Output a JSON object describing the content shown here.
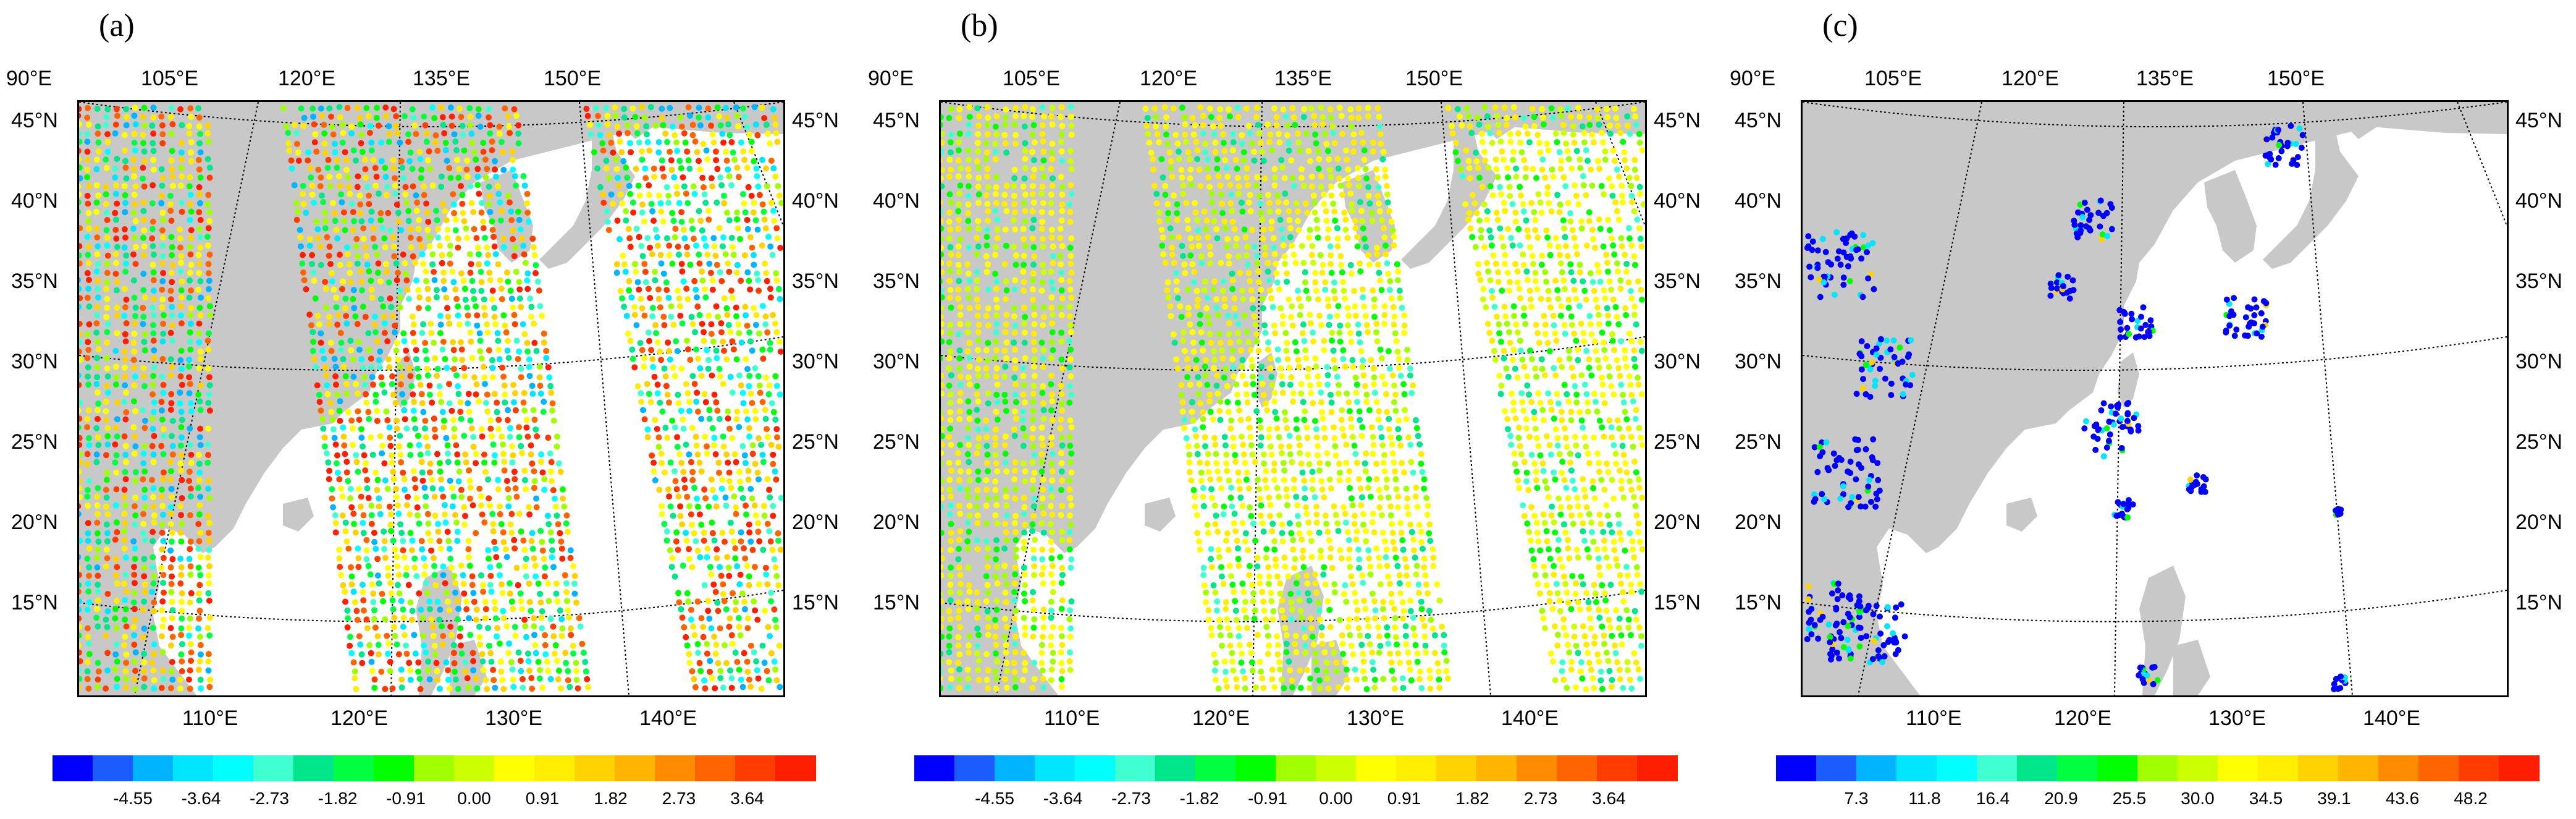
{
  "colors": {
    "land": "#c8c8c8",
    "ocean": "#ffffff",
    "palette": [
      "#0000ff",
      "#1a5cff",
      "#00b4ff",
      "#00e6ff",
      "#00ffff",
      "#40ffd0",
      "#00e68a",
      "#00ff40",
      "#00ff00",
      "#a0ff00",
      "#ccff00",
      "#ffff00",
      "#ffee00",
      "#ffd200",
      "#ffb400",
      "#ff8c00",
      "#ff6400",
      "#ff3c00",
      "#ff1e00"
    ]
  },
  "axes": {
    "top_lon_labels": [
      "90°E",
      "105°E",
      "120°E",
      "135°E",
      "150°E"
    ],
    "bottom_lon_labels": [
      "110°E",
      "120°E",
      "130°E",
      "140°E"
    ],
    "lat_labels": [
      "45°N",
      "40°N",
      "35°N",
      "30°N",
      "25°N",
      "20°N",
      "15°N"
    ]
  },
  "panels": [
    {
      "letter": "(a)",
      "colorbar_labels": [
        "-4.55",
        "-3.64",
        "-2.73",
        "-1.82",
        "-0.91",
        "0.00",
        "0.91",
        "1.82",
        "2.73",
        "3.64"
      ],
      "pattern": "mixed"
    },
    {
      "letter": "(b)",
      "colorbar_labels": [
        "-4.55",
        "-3.64",
        "-2.73",
        "-1.82",
        "-0.91",
        "0.00",
        "0.91",
        "1.82",
        "2.73",
        "3.64"
      ],
      "pattern": "smooth"
    },
    {
      "letter": "(c)",
      "colorbar_labels": [
        "7.3",
        "11.8",
        "16.4",
        "20.9",
        "25.5",
        "30.0",
        "34.5",
        "39.1",
        "43.6",
        "48.2"
      ],
      "pattern": "sparse"
    }
  ]
}
